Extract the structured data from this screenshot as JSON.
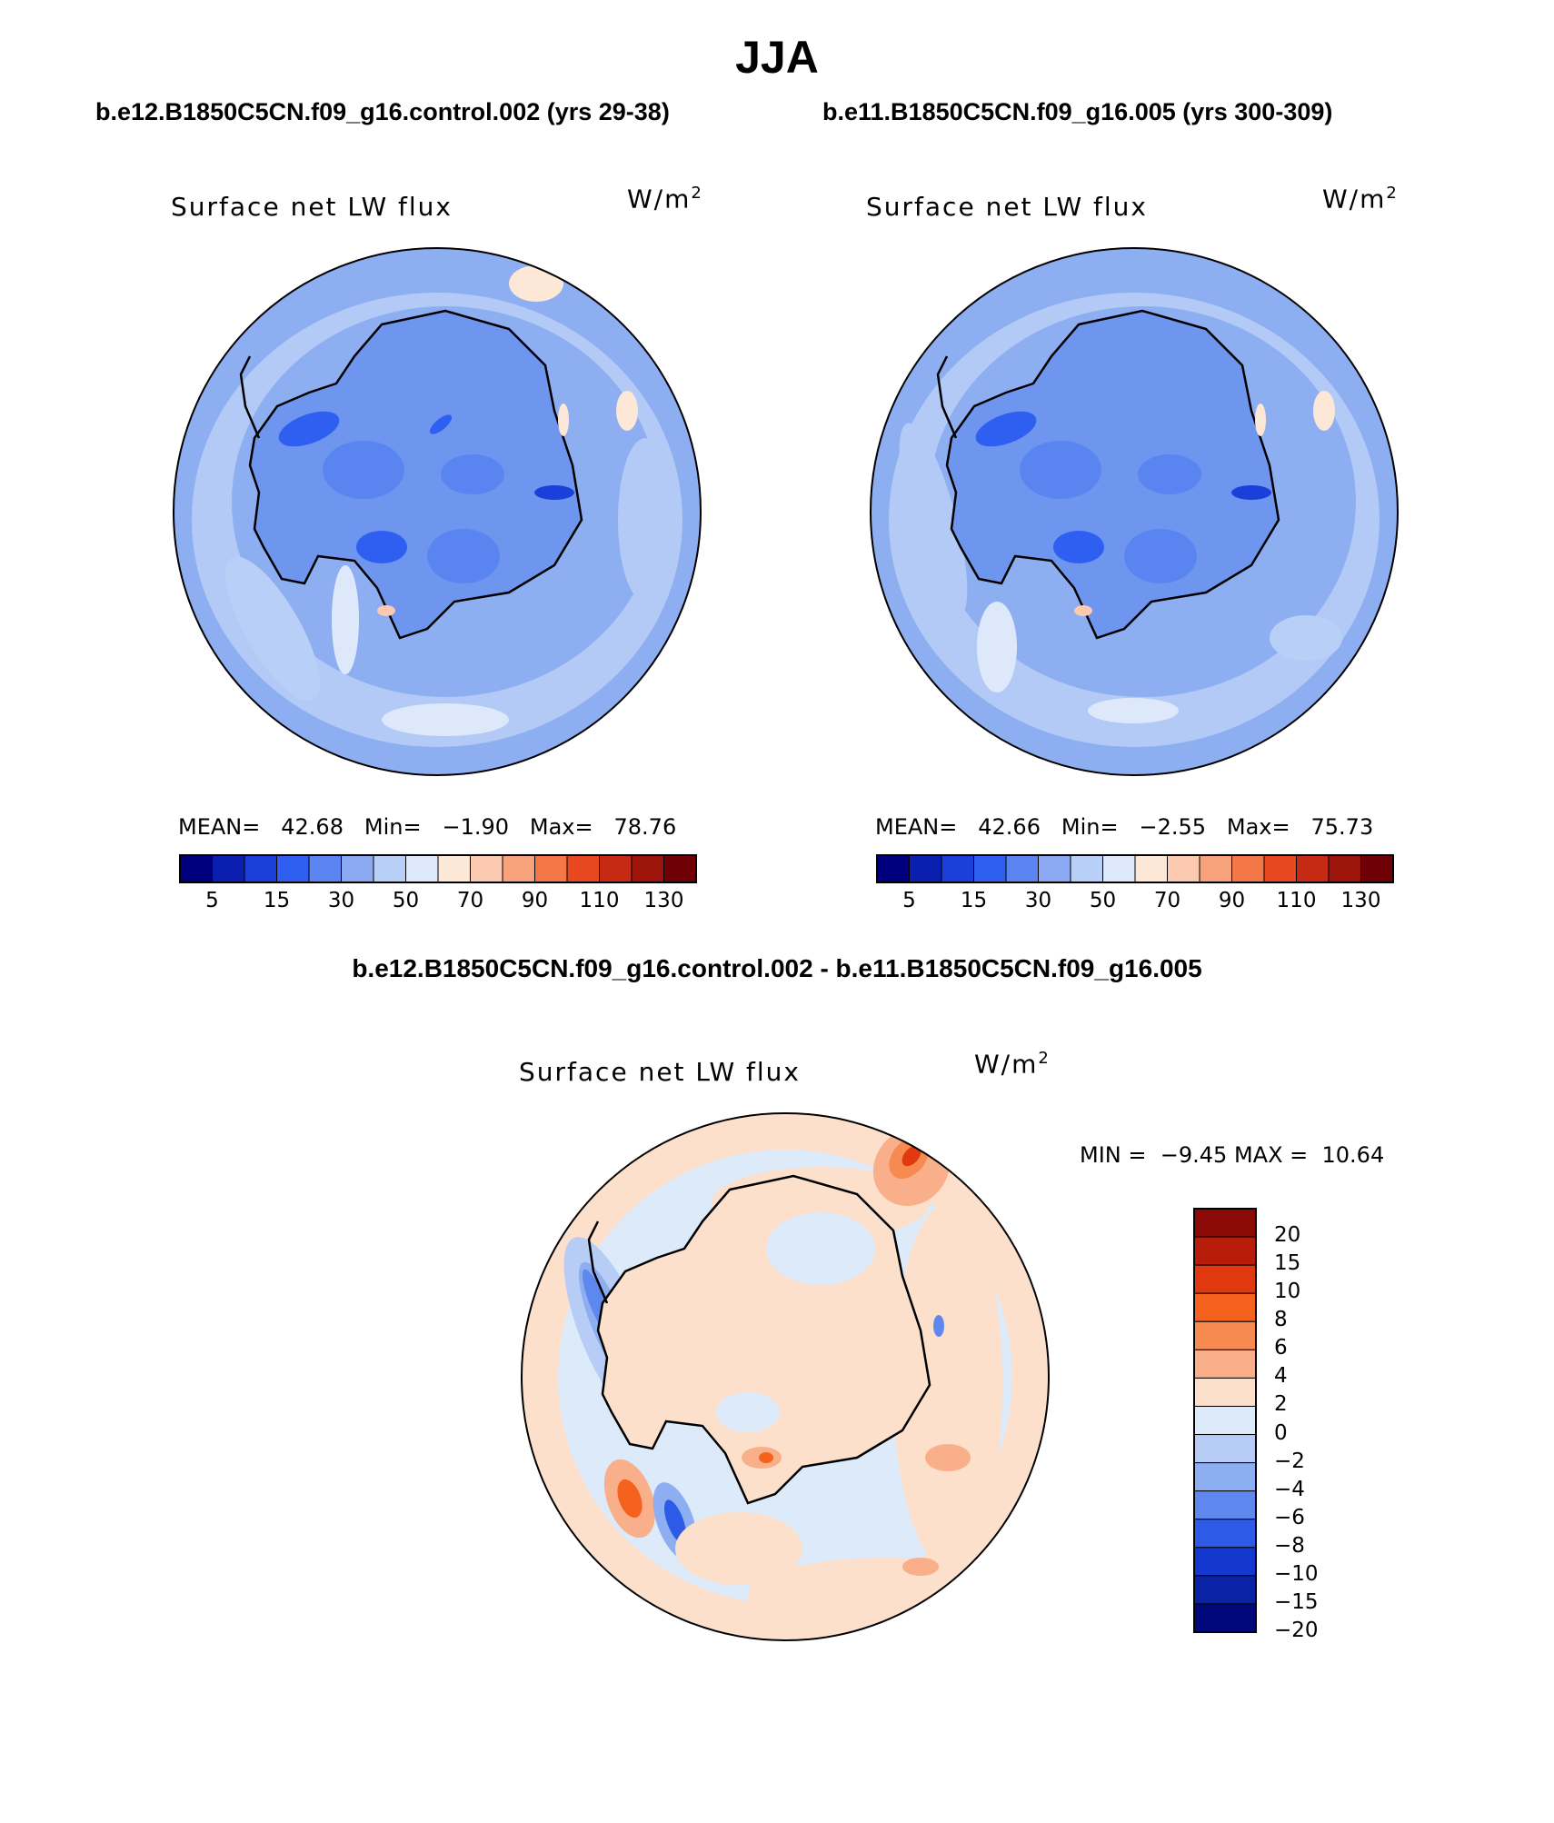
{
  "title": "JJA",
  "panels": [
    {
      "case": "b.e12.B1850C5CN.f09_g16.control.002 (yrs 29-38)",
      "variable": "Surface net LW flux",
      "units": "W/m",
      "units_exp": "2",
      "stats": {
        "mean": "42.68",
        "min": "−1.90",
        "max": "78.76"
      },
      "stats_labels": {
        "mean": "MEAN=",
        "min": "Min=",
        "max": "Max="
      }
    },
    {
      "case": "b.e11.B1850C5CN.f09_g16.005 (yrs 300-309)",
      "variable": "Surface net LW flux",
      "units": "W/m",
      "units_exp": "2",
      "stats": {
        "mean": "42.66",
        "min": "−2.55",
        "max": "75.73"
      },
      "stats_labels": {
        "mean": "MEAN=",
        "min": "Min=",
        "max": "Max="
      }
    }
  ],
  "colorbar_abs": {
    "colors": [
      "#00007f",
      "#0a1fb0",
      "#1b3fd9",
      "#2f5ff0",
      "#5a85f0",
      "#8ba9f2",
      "#b8cff7",
      "#dde9fb",
      "#fde7d6",
      "#fccab0",
      "#f8a27c",
      "#f47747",
      "#e8481f",
      "#c72a12",
      "#9d140b",
      "#6f0005"
    ],
    "tick_labels": [
      "5",
      "15",
      "30",
      "50",
      "70",
      "90",
      "110",
      "130"
    ]
  },
  "diff": {
    "title": "b.e12.B1850C5CN.f09_g16.control.002 - b.e11.B1850C5CN.f09_g16.005",
    "variable": "Surface net LW flux",
    "units": "W/m",
    "units_exp": "2",
    "min_label": "MIN =",
    "min": "−9.45",
    "max_label": "MAX =",
    "max": "10.64"
  },
  "colorbar_diff": {
    "colors_top_to_bottom": [
      "#8b0a05",
      "#b81c0a",
      "#e0380f",
      "#f4621e",
      "#f68a50",
      "#f9b08a",
      "#fde0cc",
      "#dceafa",
      "#b7cdf5",
      "#8eaef2",
      "#5f88ee",
      "#2d5be8",
      "#1437cf",
      "#0a22a6",
      "#00087a"
    ],
    "labels": [
      "20",
      "15",
      "10",
      "8",
      "6",
      "4",
      "2",
      "0",
      "−2",
      "−4",
      "−6",
      "−8",
      "−10",
      "−15",
      "−20"
    ]
  }
}
